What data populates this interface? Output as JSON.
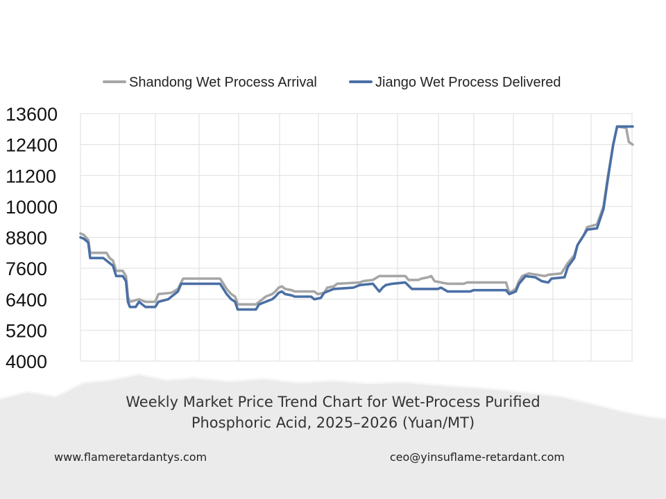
{
  "chart_data": {
    "type": "line",
    "title": "",
    "xlabel": "",
    "ylabel": "",
    "ylim": [
      4000,
      13600
    ],
    "yticks": [
      13600,
      12400,
      11200,
      10000,
      8800,
      7600,
      6400,
      5200,
      4000
    ],
    "grid": true,
    "legend_position": "top",
    "series": [
      {
        "name": "Shandong Wet Process Arrival",
        "color": "#a6a6a6",
        "values": [
          [
            0,
            8950
          ],
          [
            0.5,
            8900
          ],
          [
            1.2,
            8700
          ],
          [
            1.5,
            8200
          ],
          [
            4,
            8200
          ],
          [
            4.5,
            8000
          ],
          [
            5,
            7900
          ],
          [
            5.5,
            7500
          ],
          [
            6.5,
            7500
          ],
          [
            7,
            7300
          ],
          [
            7.3,
            6500
          ],
          [
            7.6,
            6300
          ],
          [
            9,
            6400
          ],
          [
            10,
            6300
          ],
          [
            11.5,
            6300
          ],
          [
            12,
            6600
          ],
          [
            14,
            6650
          ],
          [
            15,
            6800
          ],
          [
            15.8,
            7200
          ],
          [
            21.5,
            7200
          ],
          [
            22,
            7000
          ],
          [
            22.5,
            6800
          ],
          [
            23.2,
            6600
          ],
          [
            23.8,
            6500
          ],
          [
            24.2,
            6200
          ],
          [
            27,
            6200
          ],
          [
            27.5,
            6300
          ],
          [
            28,
            6400
          ],
          [
            28.5,
            6500
          ],
          [
            29.5,
            6600
          ],
          [
            30,
            6700
          ],
          [
            30.5,
            6850
          ],
          [
            31,
            6900
          ],
          [
            31.5,
            6800
          ],
          [
            32.5,
            6750
          ],
          [
            33,
            6700
          ],
          [
            36,
            6700
          ],
          [
            36.5,
            6600
          ],
          [
            37.5,
            6650
          ],
          [
            38,
            6850
          ],
          [
            39,
            6900
          ],
          [
            39.5,
            7000
          ],
          [
            43,
            7050
          ],
          [
            43.5,
            7100
          ],
          [
            45,
            7150
          ],
          [
            46,
            7300
          ],
          [
            50,
            7300
          ],
          [
            50.5,
            7150
          ],
          [
            52,
            7150
          ],
          [
            52.5,
            7200
          ],
          [
            53.5,
            7250
          ],
          [
            54,
            7300
          ],
          [
            54.5,
            7100
          ],
          [
            56.5,
            7000
          ],
          [
            59,
            7000
          ],
          [
            59.5,
            7050
          ],
          [
            65.5,
            7050
          ],
          [
            66,
            6650
          ],
          [
            67,
            6800
          ],
          [
            67.5,
            7100
          ],
          [
            68,
            7300
          ],
          [
            69,
            7400
          ],
          [
            71.5,
            7300
          ],
          [
            72,
            7350
          ],
          [
            74,
            7400
          ],
          [
            75,
            7800
          ],
          [
            76,
            8100
          ],
          [
            76.5,
            8500
          ],
          [
            77.5,
            8900
          ],
          [
            78,
            9200
          ],
          [
            79.5,
            9300
          ],
          [
            80.5,
            10000
          ],
          [
            81.2,
            11200
          ],
          [
            82,
            12400
          ],
          [
            82.6,
            13100
          ],
          [
            84,
            13050
          ],
          [
            84.4,
            12500
          ],
          [
            85,
            12400
          ]
        ]
      },
      {
        "name": "Jiango Wet Process Delivered",
        "color": "#4a6fa5",
        "values": [
          [
            0,
            8800
          ],
          [
            0.5,
            8750
          ],
          [
            1.2,
            8600
          ],
          [
            1.5,
            8000
          ],
          [
            3.5,
            8000
          ],
          [
            4,
            7900
          ],
          [
            5,
            7700
          ],
          [
            5.5,
            7300
          ],
          [
            6.5,
            7300
          ],
          [
            7,
            7100
          ],
          [
            7.3,
            6300
          ],
          [
            7.6,
            6100
          ],
          [
            8.5,
            6100
          ],
          [
            9,
            6300
          ],
          [
            10,
            6100
          ],
          [
            11.5,
            6100
          ],
          [
            12,
            6300
          ],
          [
            13.5,
            6400
          ],
          [
            14,
            6500
          ],
          [
            15,
            6700
          ],
          [
            15.5,
            7000
          ],
          [
            21.5,
            7000
          ],
          [
            22,
            6800
          ],
          [
            22.5,
            6600
          ],
          [
            23.2,
            6400
          ],
          [
            23.8,
            6300
          ],
          [
            24.2,
            6000
          ],
          [
            27,
            6000
          ],
          [
            27.5,
            6200
          ],
          [
            28.5,
            6300
          ],
          [
            29.5,
            6400
          ],
          [
            30,
            6500
          ],
          [
            30.5,
            6650
          ],
          [
            31,
            6700
          ],
          [
            31.5,
            6600
          ],
          [
            32.5,
            6550
          ],
          [
            33,
            6500
          ],
          [
            35.5,
            6500
          ],
          [
            36,
            6400
          ],
          [
            37,
            6450
          ],
          [
            37.5,
            6650
          ],
          [
            38.5,
            6750
          ],
          [
            39,
            6800
          ],
          [
            42,
            6850
          ],
          [
            43,
            6950
          ],
          [
            45,
            7000
          ],
          [
            46,
            6700
          ],
          [
            46.5,
            6850
          ],
          [
            47,
            6950
          ],
          [
            48,
            7000
          ],
          [
            50,
            7050
          ],
          [
            51,
            6800
          ],
          [
            55,
            6800
          ],
          [
            55.5,
            6850
          ],
          [
            56.5,
            6700
          ],
          [
            60,
            6700
          ],
          [
            60.5,
            6750
          ],
          [
            65.5,
            6750
          ],
          [
            66,
            6600
          ],
          [
            67,
            6700
          ],
          [
            67.5,
            7000
          ],
          [
            68.5,
            7300
          ],
          [
            70,
            7250
          ],
          [
            71,
            7100
          ],
          [
            72,
            7050
          ],
          [
            72.5,
            7200
          ],
          [
            74.5,
            7250
          ],
          [
            75,
            7650
          ],
          [
            76,
            8000
          ],
          [
            76.5,
            8500
          ],
          [
            77.5,
            8900
          ],
          [
            78,
            9100
          ],
          [
            79.5,
            9150
          ],
          [
            80.5,
            9900
          ],
          [
            81.2,
            11100
          ],
          [
            82,
            12400
          ],
          [
            82.6,
            13100
          ],
          [
            85,
            13100
          ]
        ]
      }
    ]
  },
  "caption": {
    "line1": "Weekly Market Price Trend Chart for Wet-Process Purified",
    "line2": "Phosphoric Acid, 2025–2026 (Yuan/MT)"
  },
  "contact": {
    "website": "www.flameretardantys.com",
    "email": "ceo@yinsuflame-retardant.com"
  }
}
